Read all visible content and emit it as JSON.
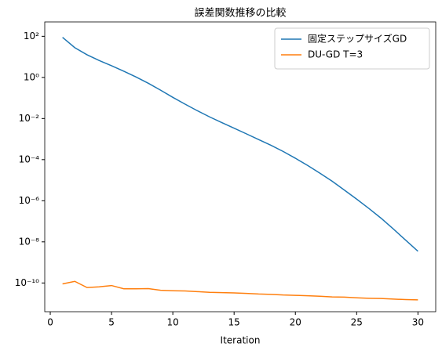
{
  "chart_data": {
    "type": "line",
    "title": "誤差関数推移の比較",
    "xlabel": "Iteration",
    "x": [
      1,
      2,
      3,
      4,
      5,
      6,
      7,
      8,
      9,
      10,
      11,
      12,
      13,
      14,
      15,
      16,
      17,
      18,
      19,
      20,
      21,
      22,
      23,
      24,
      25,
      26,
      27,
      28,
      29,
      30
    ],
    "series": [
      {
        "name": "固定ステップサイズGD",
        "color": "#1f77b4",
        "values": [
          89,
          28,
          12.6,
          6.6,
          3.7,
          2.0,
          1.05,
          0.52,
          0.24,
          0.107,
          0.05,
          0.024,
          0.012,
          0.0063,
          0.0034,
          0.0018,
          0.00095,
          0.0005,
          0.00025,
          0.000117,
          5.2e-05,
          2.2e-05,
          8.9e-06,
          3.3e-06,
          1.2e-06,
          4.2e-07,
          1.4e-07,
          4.2e-08,
          1.2e-08,
          3.5e-09
        ]
      },
      {
        "name": "DU-GD T=3",
        "color": "#ff7f0e",
        "values": [
          9e-11,
          1.2e-10,
          6e-11,
          6.5e-11,
          7.5e-11,
          5.2e-11,
          5.2e-11,
          5.3e-11,
          4.4e-11,
          4.2e-11,
          4.1e-11,
          3.8e-11,
          3.5e-11,
          3.4e-11,
          3.3e-11,
          3.1e-11,
          2.9e-11,
          2.8e-11,
          2.6e-11,
          2.5e-11,
          2.4e-11,
          2.25e-11,
          2.1e-11,
          2.05e-11,
          1.9e-11,
          1.8e-11,
          1.75e-11,
          1.65e-11,
          1.55e-11,
          1.5e-11
        ]
      }
    ],
    "xlim": [
      -0.45,
      31.45
    ],
    "xticks": [
      0,
      5,
      10,
      15,
      20,
      25,
      30
    ],
    "ylim": [
      4e-12,
      500
    ],
    "yscale": "log",
    "yticks": [
      {
        "value": 100,
        "label": "10²"
      },
      {
        "value": 1,
        "label": "10⁰"
      },
      {
        "value": 0.01,
        "label": "10⁻²"
      },
      {
        "value": 0.0001,
        "label": "10⁻⁴"
      },
      {
        "value": 1e-06,
        "label": "10⁻⁶"
      },
      {
        "value": 1e-08,
        "label": "10⁻⁸"
      },
      {
        "value": 1e-10,
        "label": "10⁻¹⁰"
      }
    ],
    "legend": "upper right"
  }
}
